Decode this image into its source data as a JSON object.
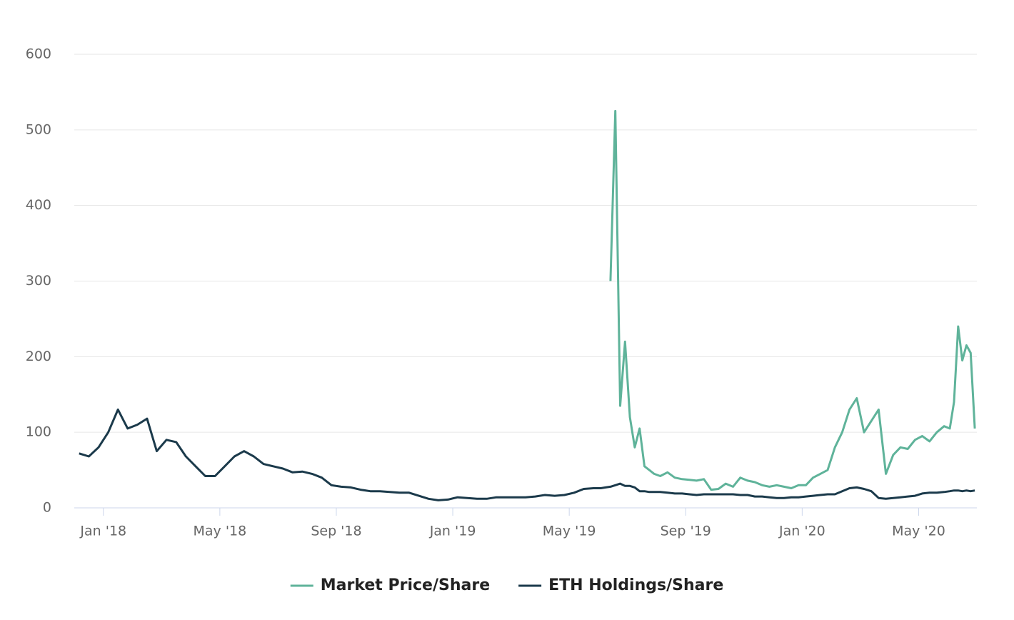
{
  "chart_data": {
    "type": "line",
    "x": [
      "2017-12",
      "2017-12",
      "2017-12",
      "2018-01",
      "2018-01",
      "2018-01",
      "2018-02",
      "2018-02",
      "2018-02",
      "2018-03",
      "2018-03",
      "2018-03",
      "2018-04",
      "2018-04",
      "2018-04",
      "2018-05",
      "2018-05",
      "2018-05",
      "2018-06",
      "2018-06",
      "2018-06",
      "2018-07",
      "2018-07",
      "2018-07",
      "2018-08",
      "2018-08",
      "2018-08",
      "2018-09",
      "2018-09",
      "2018-09",
      "2018-10",
      "2018-10",
      "2018-10",
      "2018-11",
      "2018-11",
      "2018-11",
      "2018-12",
      "2018-12",
      "2018-12",
      "2019-01",
      "2019-01",
      "2019-01",
      "2019-02",
      "2019-02",
      "2019-02",
      "2019-03",
      "2019-03",
      "2019-03",
      "2019-04",
      "2019-04",
      "2019-04",
      "2019-05",
      "2019-05",
      "2019-05",
      "2019-06",
      "2019-06",
      "2019-06",
      "2019-06",
      "2019-06",
      "2019-06",
      "2019-07",
      "2019-07",
      "2019-07",
      "2019-07",
      "2019-07",
      "2019-07",
      "2019-08",
      "2019-08",
      "2019-08",
      "2019-08",
      "2019-09",
      "2019-09",
      "2019-09",
      "2019-09",
      "2019-10",
      "2019-10",
      "2019-10",
      "2019-10",
      "2019-11",
      "2019-11",
      "2019-11",
      "2019-11",
      "2019-12",
      "2019-12",
      "2019-12",
      "2019-12",
      "2020-01",
      "2020-01",
      "2020-01",
      "2020-01",
      "2020-02",
      "2020-02",
      "2020-02",
      "2020-02",
      "2020-03",
      "2020-03",
      "2020-03",
      "2020-03",
      "2020-04",
      "2020-04",
      "2020-04",
      "2020-04",
      "2020-05",
      "2020-05",
      "2020-05",
      "2020-05",
      "2020-06",
      "2020-06",
      "2020-06",
      "2020-06",
      "2020-06",
      "2020-06",
      "2020-06"
    ],
    "series": [
      {
        "name": "Market Price/Share",
        "color": "#5fb39a",
        "values": [
          null,
          null,
          null,
          null,
          null,
          null,
          null,
          null,
          null,
          null,
          null,
          null,
          null,
          null,
          null,
          null,
          null,
          null,
          null,
          null,
          null,
          null,
          null,
          null,
          null,
          null,
          null,
          null,
          null,
          null,
          null,
          null,
          null,
          null,
          null,
          null,
          null,
          null,
          null,
          null,
          null,
          null,
          null,
          null,
          null,
          null,
          null,
          null,
          null,
          null,
          null,
          null,
          null,
          null,
          null,
          null,
          300,
          525,
          135,
          220,
          120,
          80,
          105,
          55,
          50,
          45,
          42,
          47,
          40,
          38,
          37,
          36,
          38,
          24,
          25,
          32,
          28,
          40,
          36,
          34,
          30,
          28,
          30,
          28,
          26,
          30,
          30,
          40,
          45,
          50,
          80,
          100,
          130,
          145,
          100,
          115,
          130,
          45,
          70,
          80,
          78,
          90,
          95,
          88,
          100,
          108,
          105,
          140,
          240,
          195,
          215,
          205,
          105
        ]
      },
      {
        "name": "ETH Holdings/Share",
        "color": "#1b3a4b",
        "values": [
          72,
          68,
          80,
          100,
          130,
          105,
          110,
          118,
          75,
          90,
          87,
          68,
          55,
          42,
          42,
          55,
          68,
          75,
          68,
          58,
          55,
          52,
          47,
          48,
          45,
          40,
          30,
          28,
          27,
          24,
          22,
          22,
          21,
          20,
          20,
          16,
          12,
          10,
          11,
          14,
          13,
          12,
          12,
          14,
          14,
          14,
          14,
          15,
          17,
          16,
          17,
          20,
          25,
          26,
          26,
          27,
          28,
          30,
          32,
          29,
          29,
          27,
          22,
          22,
          21,
          21,
          21,
          20,
          19,
          19,
          18,
          17,
          18,
          18,
          18,
          18,
          18,
          17,
          17,
          15,
          15,
          14,
          13,
          13,
          14,
          14,
          15,
          16,
          17,
          18,
          18,
          22,
          26,
          27,
          25,
          22,
          13,
          12,
          13,
          14,
          15,
          16,
          19,
          20,
          20,
          21,
          22,
          23,
          23,
          22,
          23,
          22,
          23
        ]
      }
    ],
    "xlim": [
      "2017-12",
      "2020-07"
    ],
    "xticks": [
      {
        "value": "2018-01",
        "label": "Jan '18"
      },
      {
        "value": "2018-05",
        "label": "May '18"
      },
      {
        "value": "2018-09",
        "label": "Sep '18"
      },
      {
        "value": "2019-01",
        "label": "Jan '19"
      },
      {
        "value": "2019-05",
        "label": "May '19"
      },
      {
        "value": "2019-09",
        "label": "Sep '19"
      },
      {
        "value": "2020-01",
        "label": "Jan '20"
      },
      {
        "value": "2020-05",
        "label": "May '20"
      }
    ],
    "ylim": [
      0,
      600
    ],
    "yticks": [
      0,
      100,
      200,
      300,
      400,
      500,
      600
    ],
    "grid": true
  }
}
